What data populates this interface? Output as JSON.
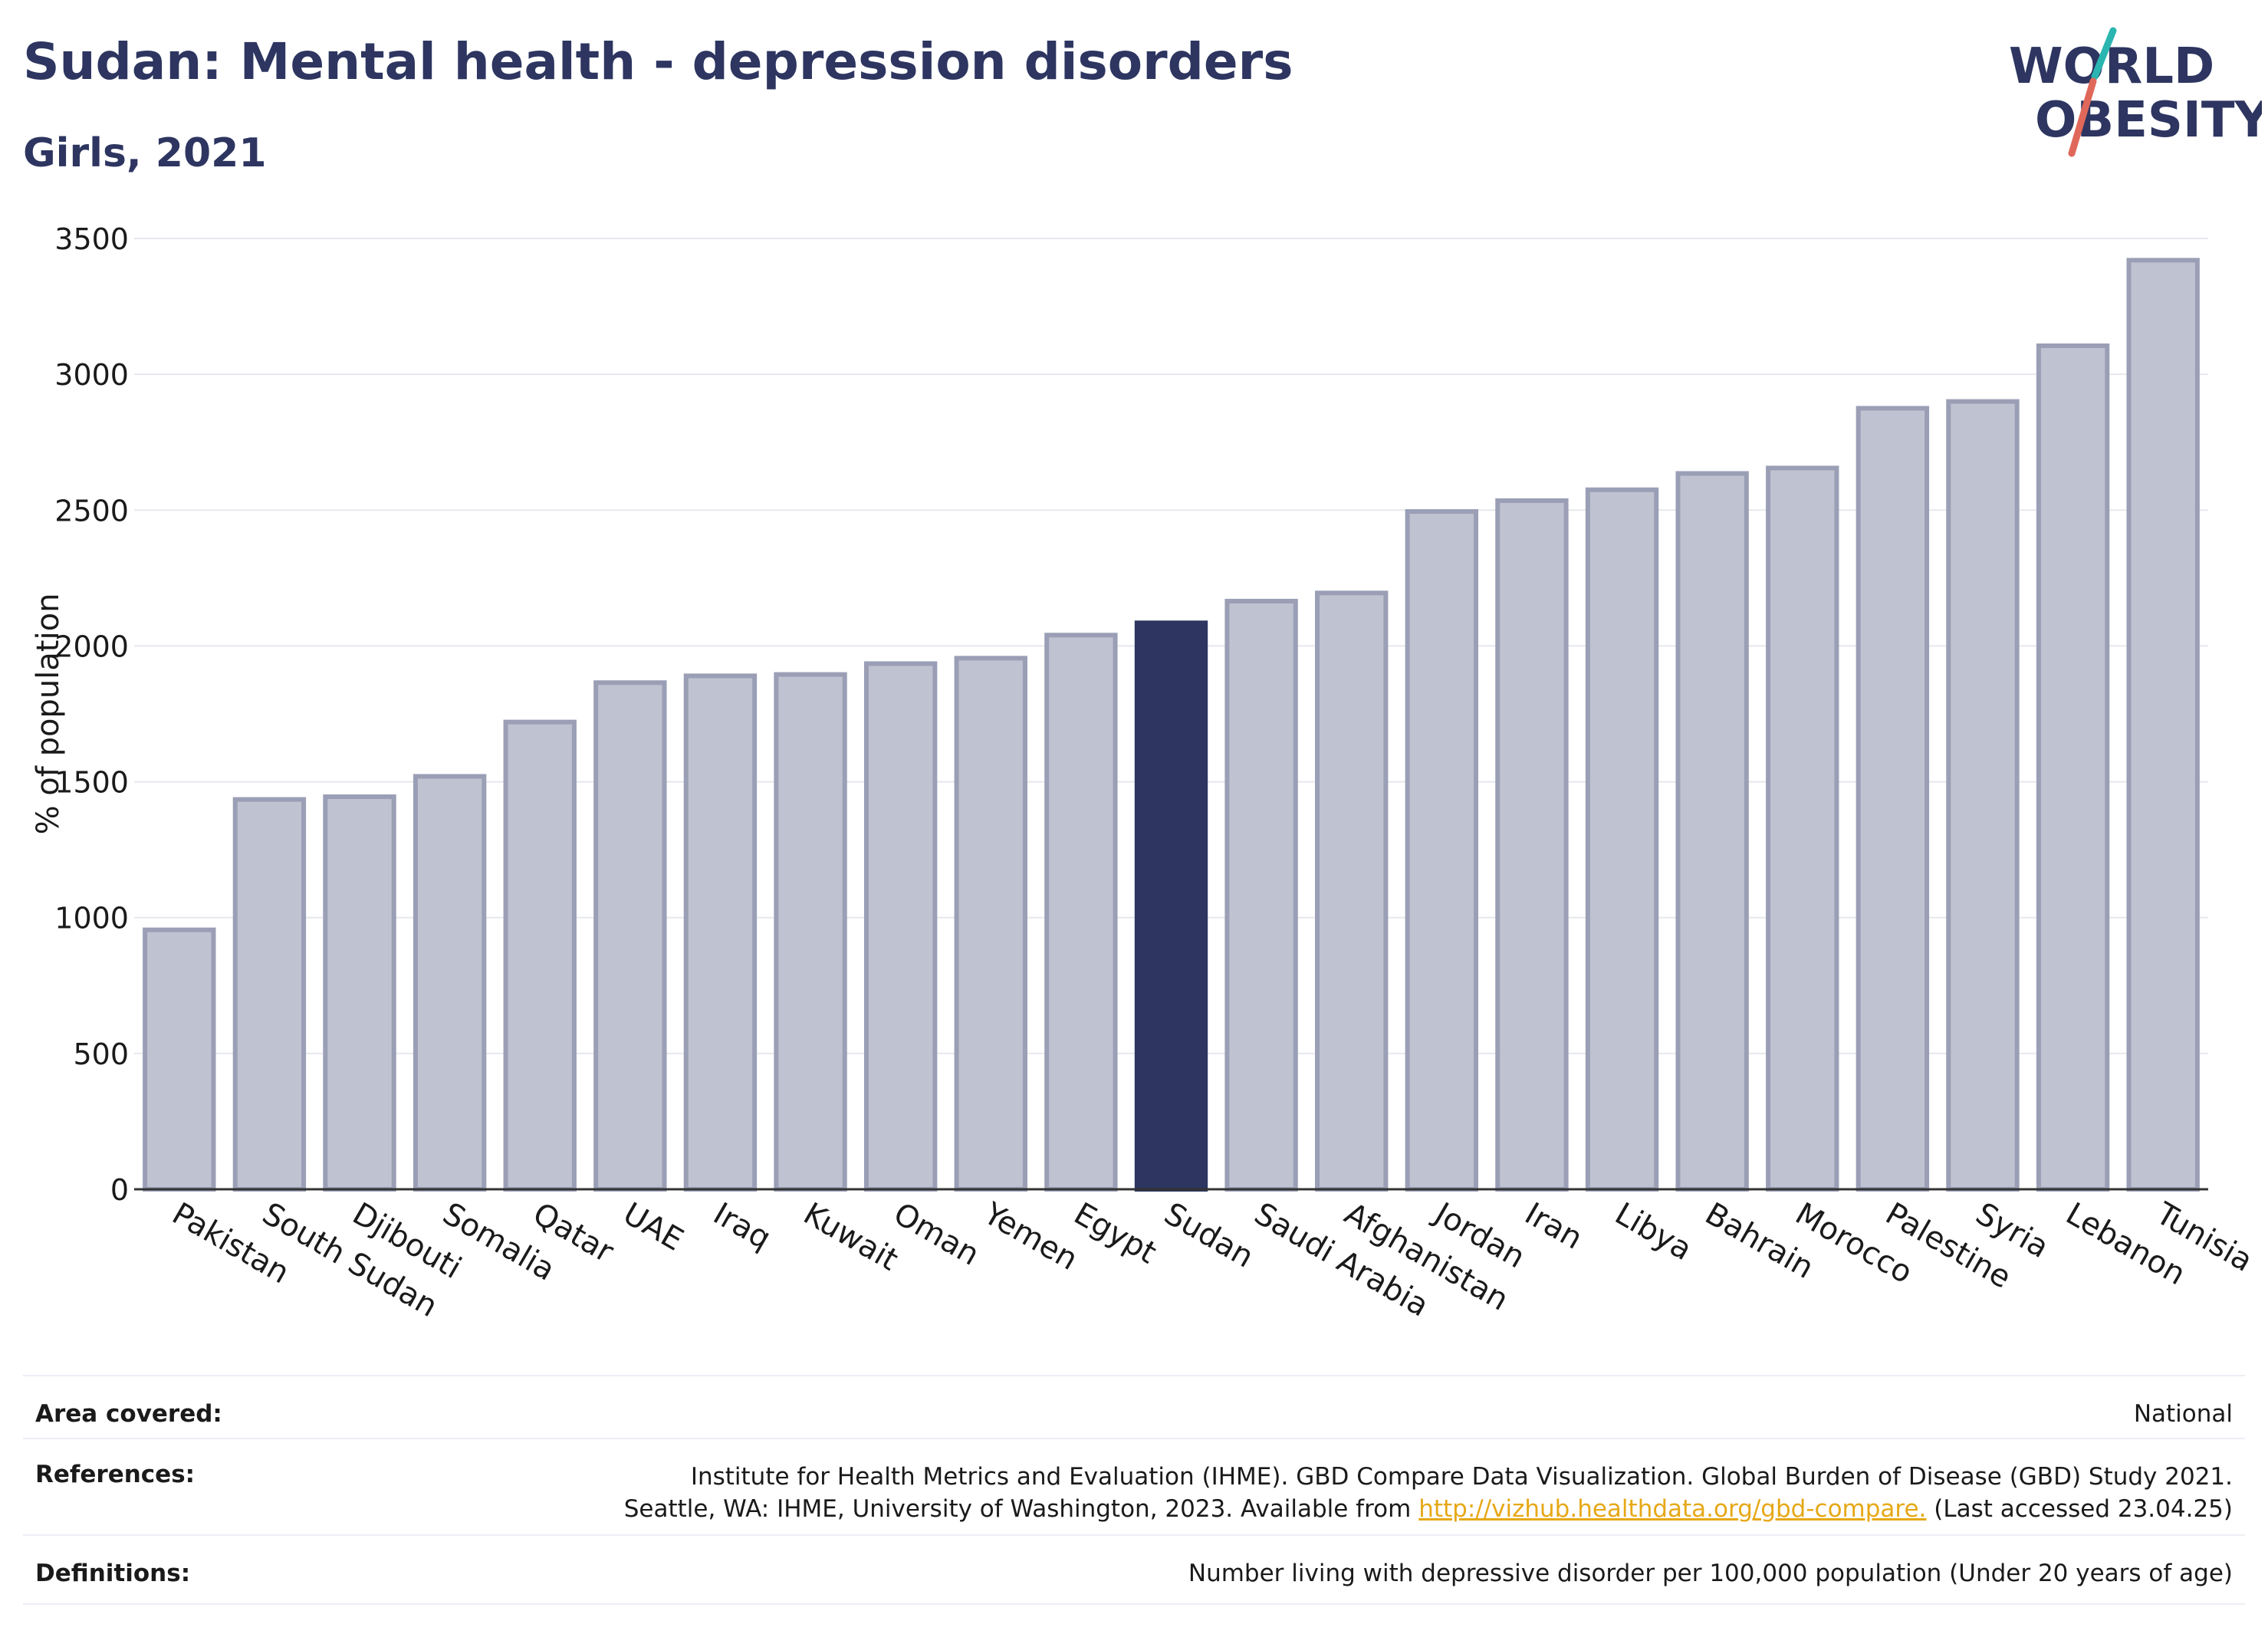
{
  "header": {
    "title": "Sudan: Mental health - depression disorders",
    "subtitle": "Girls, 2021"
  },
  "logo": {
    "line1": "WORLD",
    "line2": "OBESITY",
    "colors": {
      "text": "#2d3560",
      "teal": "#2bb5b0",
      "coral": "#e0685a"
    }
  },
  "chart_data": {
    "type": "bar",
    "ylabel": "% of population",
    "ylim": [
      0,
      3500
    ],
    "yticks": [
      0,
      500,
      1000,
      1500,
      2000,
      2500,
      3000,
      3500
    ],
    "grid": true,
    "highlight": "Sudan",
    "colors": {
      "default": "#bfc2d0",
      "default_border": "#9a9fb6",
      "highlight": "#2d3560"
    },
    "categories": [
      "Pakistan",
      "South Sudan",
      "Djibouti",
      "Somalia",
      "Qatar",
      "UAE",
      "Iraq",
      "Kuwait",
      "Oman",
      "Yemen",
      "Egypt",
      "Sudan",
      "Saudi Arabia",
      "Afghanistan",
      "Jordan",
      "Iran",
      "Libya",
      "Bahrain",
      "Morocco",
      "Palestine",
      "Syria",
      "Lebanon",
      "Tunisia"
    ],
    "values": [
      955,
      1435,
      1445,
      1520,
      1720,
      1865,
      1890,
      1895,
      1935,
      1955,
      2040,
      2085,
      2165,
      2195,
      2495,
      2535,
      2575,
      2635,
      2655,
      2875,
      2900,
      3105,
      3420
    ]
  },
  "footer": {
    "area_label": "Area covered:",
    "area_value": "National",
    "references_label": "References:",
    "references_line1": "Institute for Health Metrics and Evaluation (IHME). GBD Compare Data Visualization. Global Burden of Disease (GBD) Study 2021.",
    "references_line2_pre": "Seattle, WA: IHME, University of Washington, 2023. Available from ",
    "references_link": "http://vizhub.healthdata.org/gbd-compare.",
    "references_line2_post": " (Last accessed 23.04.25)",
    "definitions_label": "Definitions:",
    "definitions_value": "Number living with depressive disorder per 100,000 population (Under 20 years of age)"
  }
}
